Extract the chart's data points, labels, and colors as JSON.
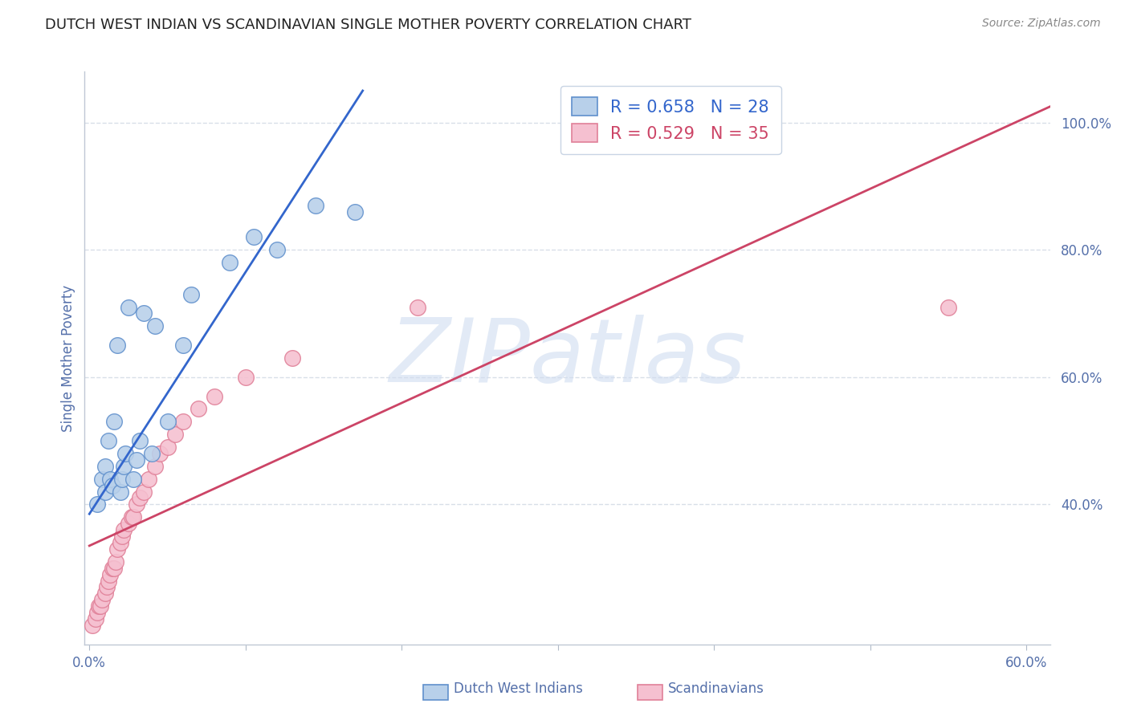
{
  "title": "DUTCH WEST INDIAN VS SCANDINAVIAN SINGLE MOTHER POVERTY CORRELATION CHART",
  "source": "Source: ZipAtlas.com",
  "ylabel": "Single Mother Poverty",
  "watermark": "ZIPatlas",
  "xlim": [
    -0.003,
    0.615
  ],
  "ylim": [
    0.18,
    1.08
  ],
  "xtick_vals": [
    0.0,
    0.1,
    0.2,
    0.3,
    0.4,
    0.5,
    0.6
  ],
  "xticklabels": [
    "0.0%",
    "",
    "",
    "",
    "",
    "",
    "60.0%"
  ],
  "yticks_right": [
    0.4,
    0.6,
    0.8,
    1.0
  ],
  "yticklabels_right": [
    "40.0%",
    "60.0%",
    "80.0%",
    "100.0%"
  ],
  "blue_label": "Dutch West Indians",
  "pink_label": "Scandinavians",
  "blue_R": "0.658",
  "blue_N": "28",
  "pink_R": "0.529",
  "pink_N": "35",
  "blue_dot_color": "#b8d0ea",
  "blue_edge_color": "#6090cc",
  "pink_dot_color": "#f5c0d0",
  "pink_edge_color": "#e08098",
  "blue_line_color": "#3366cc",
  "pink_line_color": "#cc4466",
  "axis_color": "#5570aa",
  "tick_color": "#5570aa",
  "grid_color": "#d8dfe8",
  "title_color": "#222222",
  "source_color": "#888888",
  "watermark_color": "#d0ddf0",
  "blue_scatter_x": [
    0.005,
    0.008,
    0.01,
    0.01,
    0.012,
    0.013,
    0.015,
    0.016,
    0.018,
    0.02,
    0.021,
    0.022,
    0.023,
    0.025,
    0.028,
    0.03,
    0.032,
    0.035,
    0.04,
    0.042,
    0.05,
    0.06,
    0.065,
    0.09,
    0.105,
    0.12,
    0.145,
    0.17
  ],
  "blue_scatter_y": [
    0.4,
    0.44,
    0.42,
    0.46,
    0.5,
    0.44,
    0.43,
    0.53,
    0.65,
    0.42,
    0.44,
    0.46,
    0.48,
    0.71,
    0.44,
    0.47,
    0.5,
    0.7,
    0.48,
    0.68,
    0.53,
    0.65,
    0.73,
    0.78,
    0.82,
    0.8,
    0.87,
    0.86
  ],
  "pink_scatter_x": [
    0.002,
    0.004,
    0.005,
    0.006,
    0.007,
    0.008,
    0.01,
    0.011,
    0.012,
    0.013,
    0.015,
    0.016,
    0.017,
    0.018,
    0.02,
    0.021,
    0.022,
    0.025,
    0.027,
    0.028,
    0.03,
    0.032,
    0.035,
    0.038,
    0.042,
    0.045,
    0.05,
    0.055,
    0.06,
    0.07,
    0.08,
    0.1,
    0.13,
    0.21,
    0.55
  ],
  "pink_scatter_y": [
    0.21,
    0.22,
    0.23,
    0.24,
    0.24,
    0.25,
    0.26,
    0.27,
    0.28,
    0.29,
    0.3,
    0.3,
    0.31,
    0.33,
    0.34,
    0.35,
    0.36,
    0.37,
    0.38,
    0.38,
    0.4,
    0.41,
    0.42,
    0.44,
    0.46,
    0.48,
    0.49,
    0.51,
    0.53,
    0.55,
    0.57,
    0.6,
    0.63,
    0.71,
    0.71
  ],
  "blue_line_x": [
    0.0,
    0.175
  ],
  "blue_line_y": [
    0.385,
    1.05
  ],
  "pink_line_x": [
    0.0,
    0.615
  ],
  "pink_line_y": [
    0.335,
    1.025
  ]
}
